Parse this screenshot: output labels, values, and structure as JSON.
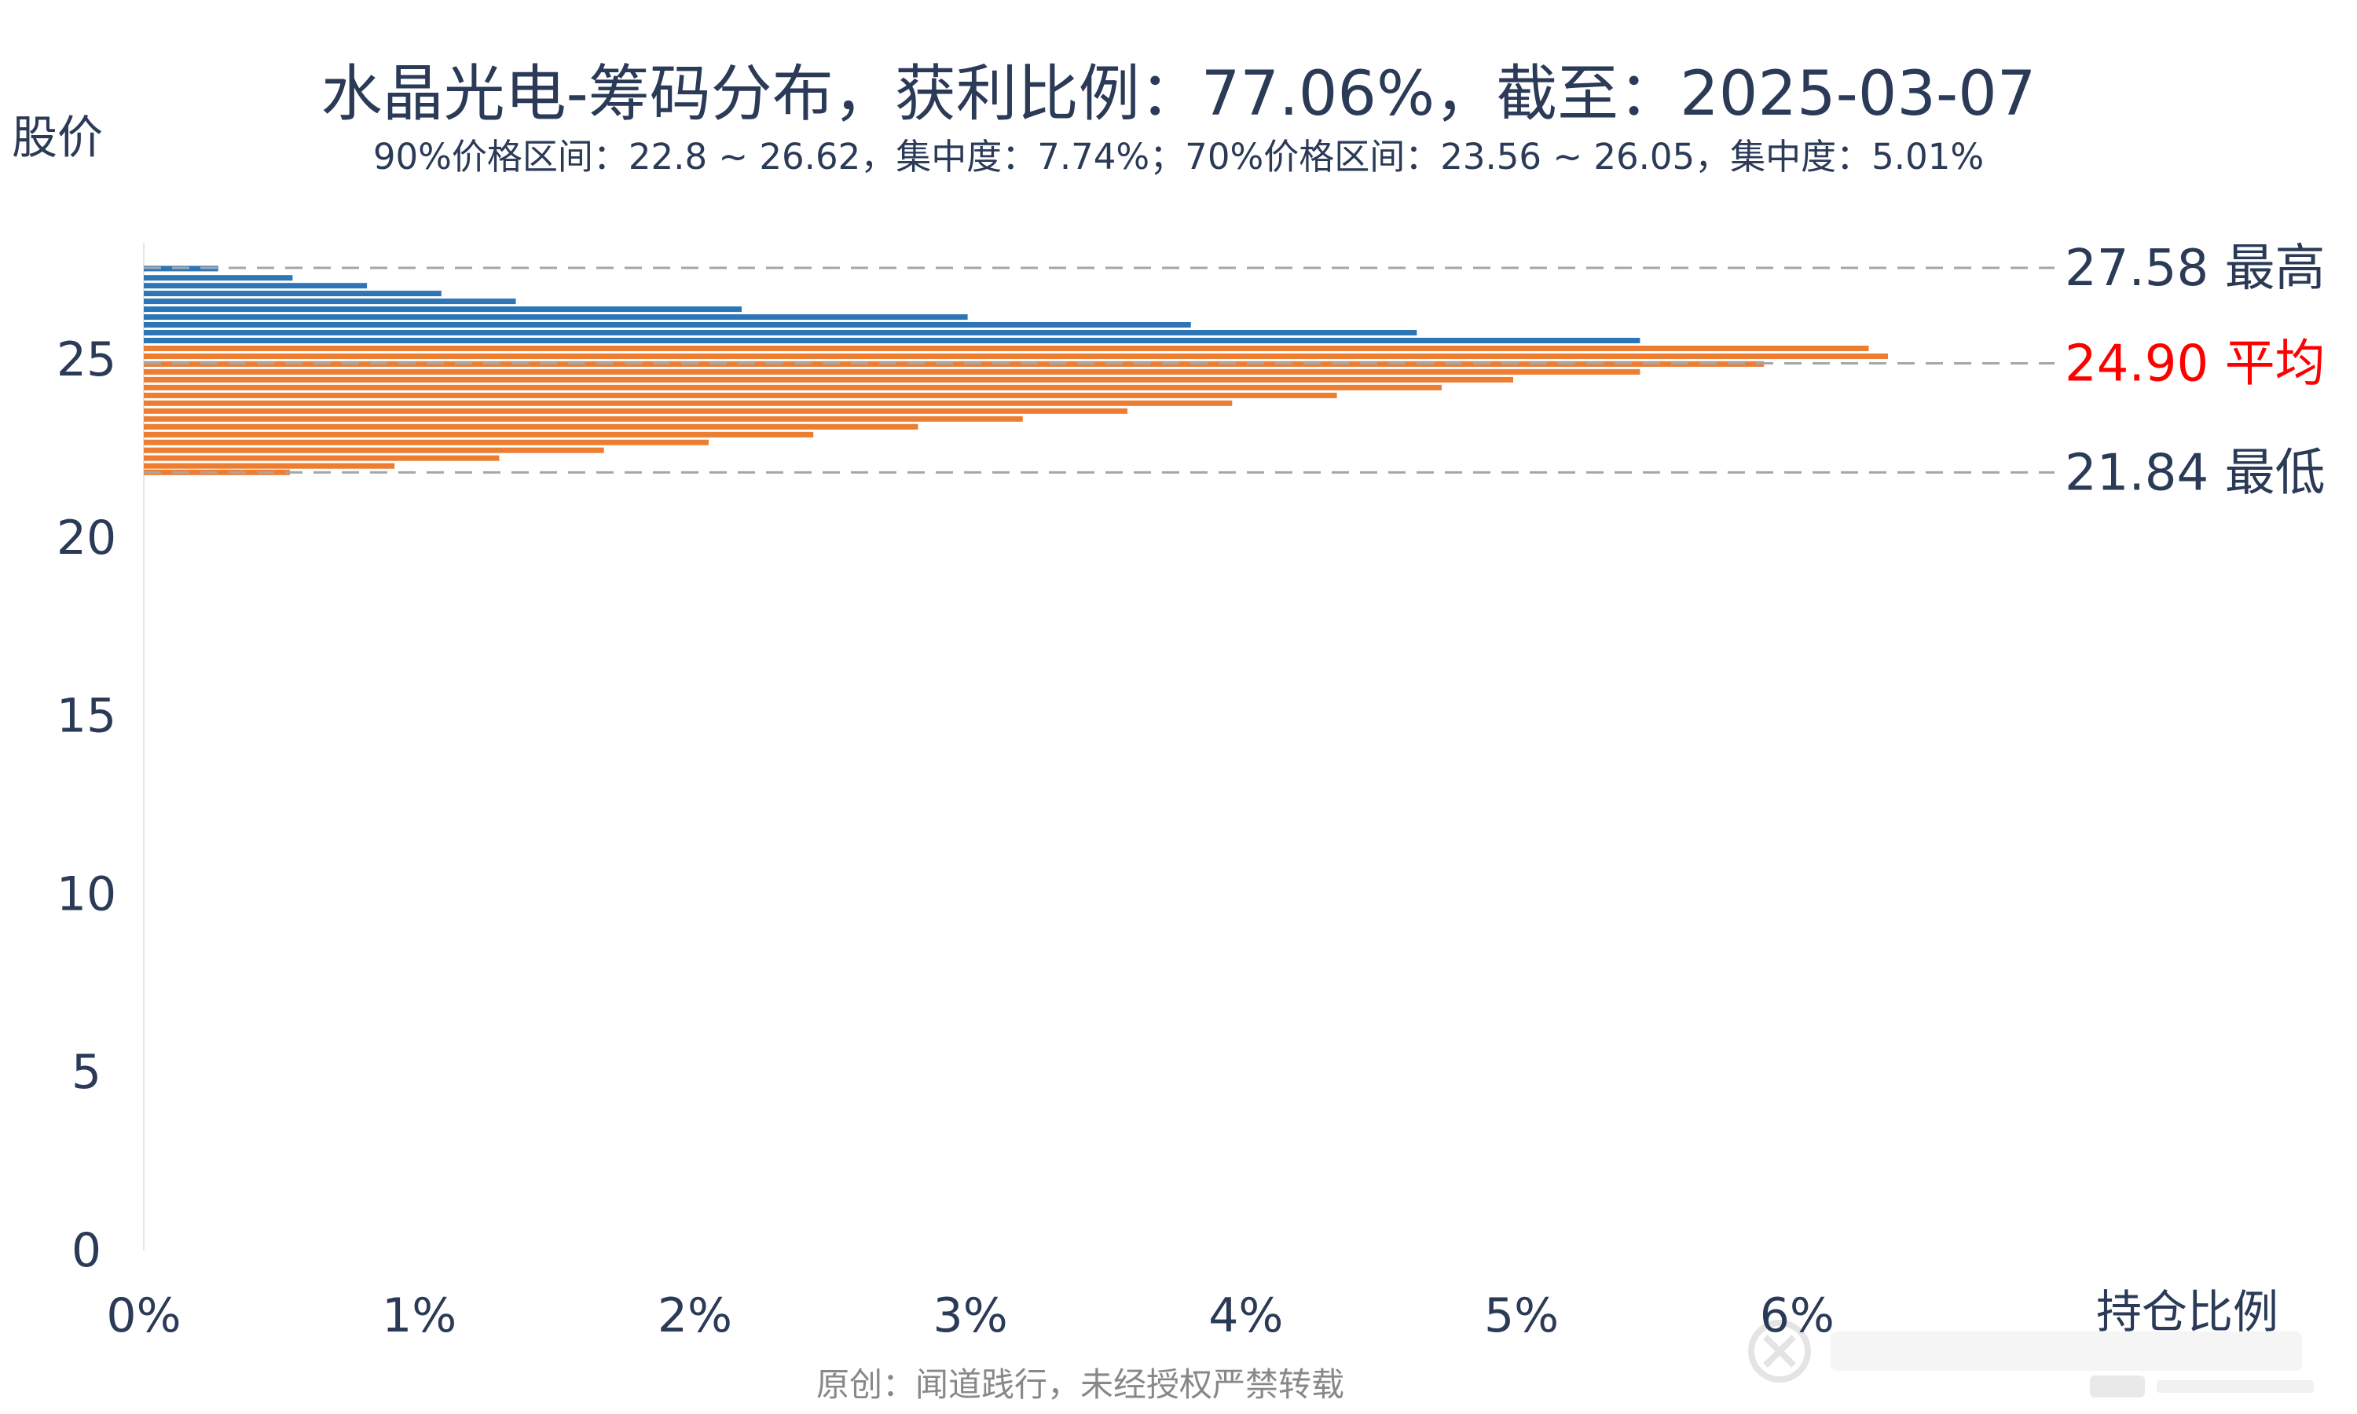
{
  "chart_data": {
    "type": "bar",
    "orientation": "horizontal",
    "title": "水晶光电-筹码分布，获利比例：77.06%，截至：2025-03-07",
    "subtitle": "90%价格区间：22.8 ~ 26.62，集中度：7.74%；70%价格区间：23.56 ~ 26.05，集中度：5.01%",
    "ylabel": "股价",
    "xlabel": "持仓比例",
    "xlim": [
      0,
      0.07
    ],
    "ylim": [
      0,
      28.5
    ],
    "x_ticks": [
      {
        "v": 0,
        "label": "0%"
      },
      {
        "v": 0.01,
        "label": "1%"
      },
      {
        "v": 0.02,
        "label": "2%"
      },
      {
        "v": 0.03,
        "label": "3%"
      },
      {
        "v": 0.04,
        "label": "4%"
      },
      {
        "v": 0.05,
        "label": "5%"
      },
      {
        "v": 0.06,
        "label": "6%"
      }
    ],
    "y_ticks": [
      {
        "v": 0,
        "label": "0"
      },
      {
        "v": 5,
        "label": "5"
      },
      {
        "v": 10,
        "label": "10"
      },
      {
        "v": 15,
        "label": "15"
      },
      {
        "v": 20,
        "label": "20"
      },
      {
        "v": 25,
        "label": "25"
      }
    ],
    "series": [
      {
        "color": "#2e75b6",
        "points": [
          {
            "price": 27.56,
            "ratio": 0.0027
          },
          {
            "price": 27.3,
            "ratio": 0.0054
          },
          {
            "price": 27.08,
            "ratio": 0.0081
          },
          {
            "price": 26.86,
            "ratio": 0.0108
          },
          {
            "price": 26.64,
            "ratio": 0.0135
          },
          {
            "price": 26.42,
            "ratio": 0.0217
          },
          {
            "price": 26.2,
            "ratio": 0.0299
          },
          {
            "price": 25.98,
            "ratio": 0.038
          },
          {
            "price": 25.76,
            "ratio": 0.0462
          },
          {
            "price": 25.54,
            "ratio": 0.0543
          }
        ]
      },
      {
        "color": "#ed7d31",
        "points": [
          {
            "price": 25.32,
            "ratio": 0.0626
          },
          {
            "price": 25.1,
            "ratio": 0.0633
          },
          {
            "price": 24.88,
            "ratio": 0.0588
          },
          {
            "price": 24.66,
            "ratio": 0.0543
          },
          {
            "price": 24.44,
            "ratio": 0.0497
          },
          {
            "price": 24.22,
            "ratio": 0.0471
          },
          {
            "price": 24.0,
            "ratio": 0.0433
          },
          {
            "price": 23.78,
            "ratio": 0.0395
          },
          {
            "price": 23.56,
            "ratio": 0.0357
          },
          {
            "price": 23.34,
            "ratio": 0.0319
          },
          {
            "price": 23.12,
            "ratio": 0.0281
          },
          {
            "price": 22.9,
            "ratio": 0.0243
          },
          {
            "price": 22.68,
            "ratio": 0.0205
          },
          {
            "price": 22.46,
            "ratio": 0.0167
          },
          {
            "price": 22.24,
            "ratio": 0.0129
          },
          {
            "price": 22.02,
            "ratio": 0.0091
          },
          {
            "price": 21.84,
            "ratio": 0.0053
          }
        ]
      }
    ],
    "reference_lines": [
      {
        "value": 27.58,
        "label": "27.58 最高",
        "color": "#2a3a57"
      },
      {
        "value": 24.9,
        "label": "24.90 平均",
        "color": "#ff0000"
      },
      {
        "value": 21.84,
        "label": "21.84 最低",
        "color": "#2a3a57"
      }
    ],
    "grid": false
  },
  "footer": {
    "credit": "原创：闻道践行，未经授权严禁转载"
  }
}
